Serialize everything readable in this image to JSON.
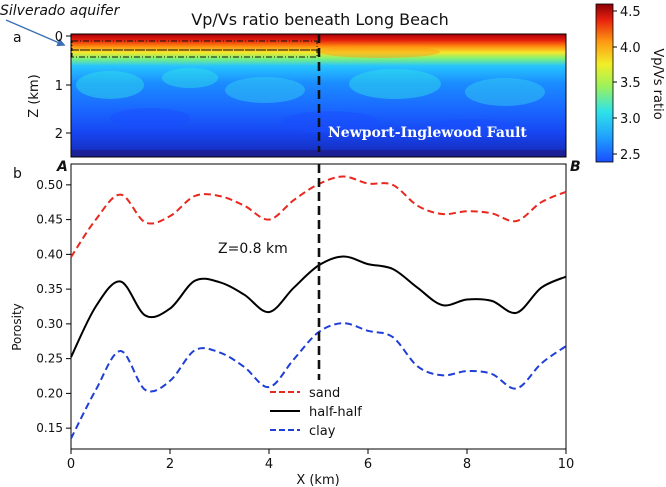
{
  "panel_a": {
    "label": "a",
    "title": "Vp/Vs ratio beneath Long Beach",
    "ylabel": "Z (km)",
    "yticks": [
      "0",
      "1",
      "2"
    ],
    "annotation_aquifer": "Silverado aquifer",
    "annotation_fault": "Newport-Inglewood Fault",
    "end_left": "A",
    "end_right": "B",
    "colorbar": {
      "label": "Vp/Vs ratio",
      "ticks": [
        "4.5",
        "4.0",
        "3.5",
        "3.0",
        "2.5"
      ],
      "range": [
        2.4,
        4.6
      ],
      "colormap": "jet"
    },
    "colors": {
      "fault_line": "#111111",
      "end_labels": "#b01818",
      "arrow": "#3a6fb5"
    }
  },
  "chart_data": [
    {
      "type": "heatmap",
      "title": "Vp/Vs ratio beneath Long Beach",
      "xlabel": "",
      "ylabel": "Z (km)",
      "xlim": [
        0,
        10
      ],
      "ylim": [
        2.5,
        0
      ],
      "colorbar_label": "Vp/Vs ratio",
      "colorbar_range": [
        2.4,
        4.6
      ],
      "colormap": "jet",
      "fault_x": 5.0,
      "annotations": [
        "Silverado aquifer",
        "Newport-Inglewood Fault"
      ]
    },
    {
      "type": "line",
      "title": "",
      "xlabel": "X (km)",
      "ylabel": "Porosity",
      "xlim": [
        0,
        10
      ],
      "ylim": [
        0.12,
        0.53
      ],
      "xticks": [
        "0",
        "2",
        "4",
        "6",
        "8",
        "10"
      ],
      "yticks": [
        "0.15",
        "0.20",
        "0.25",
        "0.30",
        "0.35",
        "0.40",
        "0.45",
        "0.50"
      ],
      "annotation": "Z=0.8 km",
      "fault_x": 5.0,
      "legend_position": "bottom-center",
      "x": [
        0,
        0.5,
        1,
        1.5,
        2,
        2.5,
        3,
        3.5,
        4,
        4.5,
        5,
        5.5,
        6,
        6.5,
        7,
        7.5,
        8,
        8.5,
        9,
        9.5,
        10
      ],
      "series": [
        {
          "name": "sand",
          "color": "#e8281e",
          "dash": true,
          "values": [
            0.396,
            0.45,
            0.486,
            0.446,
            0.455,
            0.484,
            0.484,
            0.47,
            0.45,
            0.478,
            0.501,
            0.512,
            0.502,
            0.5,
            0.47,
            0.458,
            0.462,
            0.459,
            0.448,
            0.475,
            0.49
          ]
        },
        {
          "name": "half-half",
          "color": "#000000",
          "dash": false,
          "values": [
            0.252,
            0.325,
            0.361,
            0.312,
            0.322,
            0.362,
            0.36,
            0.342,
            0.317,
            0.352,
            0.384,
            0.397,
            0.386,
            0.379,
            0.352,
            0.327,
            0.335,
            0.333,
            0.316,
            0.352,
            0.368
          ]
        },
        {
          "name": "clay",
          "color": "#1f3fd6",
          "dash": true,
          "values": [
            0.135,
            0.205,
            0.261,
            0.205,
            0.218,
            0.262,
            0.259,
            0.238,
            0.209,
            0.249,
            0.288,
            0.301,
            0.29,
            0.281,
            0.239,
            0.226,
            0.232,
            0.228,
            0.207,
            0.243,
            0.268
          ]
        }
      ]
    }
  ],
  "panel_b": {
    "label": "b",
    "xlabel": "X (km)",
    "ylabel": "Porosity",
    "annotation": "Z=0.8 km",
    "legend": [
      "sand",
      "half-half",
      "clay"
    ]
  }
}
